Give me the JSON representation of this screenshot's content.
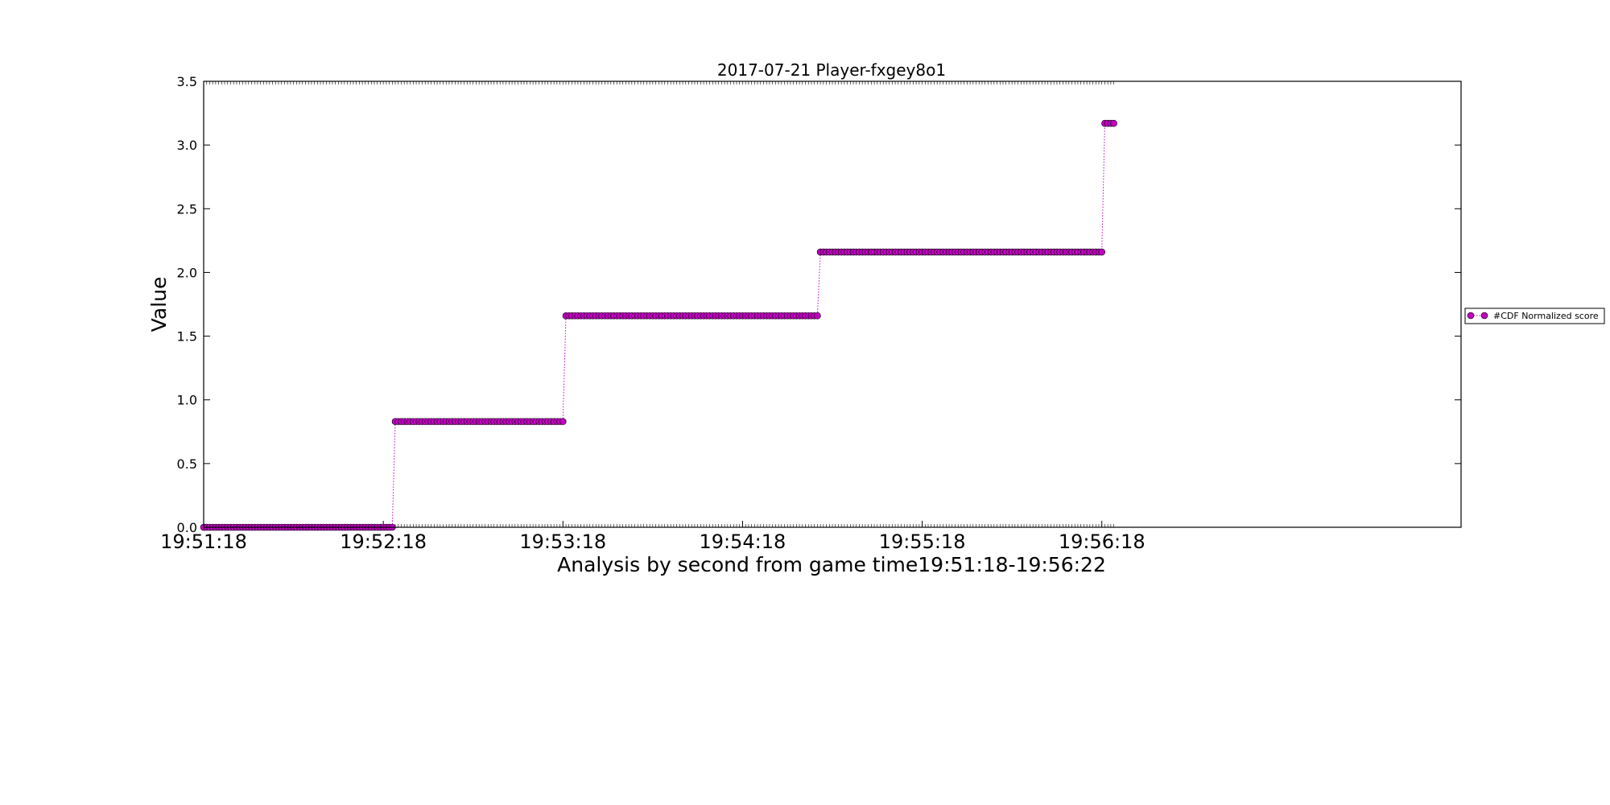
{
  "chart_data": {
    "type": "scatter",
    "title": "2017-07-21 Player-fxgey8o1",
    "xlabel": "Analysis by second from game time19:51:18-19:56:22",
    "ylabel": "Value",
    "xlim_seconds": [
      0,
      420
    ],
    "ylim": [
      0,
      3.5
    ],
    "yticks": [
      "0.0",
      "0.5",
      "1.0",
      "1.5",
      "2.0",
      "2.5",
      "3.0",
      "3.5"
    ],
    "xticks": [
      "19:51:18",
      "19:52:18",
      "19:53:18",
      "19:54:18",
      "19:55:18",
      "19:56:18"
    ],
    "grid": false,
    "legend_position": "right",
    "marker_color": "#c000c0",
    "line_style": "dotted",
    "series": [
      {
        "name": "#CDF Normalized score",
        "segments": [
          {
            "from": "19:51:18",
            "to": "19:52:21",
            "value": 0.0
          },
          {
            "from": "19:52:22",
            "to": "19:53:18",
            "value": 0.83
          },
          {
            "from": "19:53:19",
            "to": "19:54:43",
            "value": 1.66
          },
          {
            "from": "19:54:44",
            "to": "19:56:18",
            "value": 2.16
          },
          {
            "from": "19:56:19",
            "to": "19:56:22",
            "value": 3.17
          }
        ]
      }
    ]
  }
}
